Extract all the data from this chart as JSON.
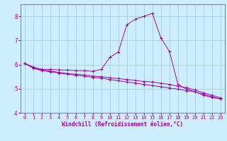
{
  "xlabel": "Windchill (Refroidissement éolien,°C)",
  "background_color": "#cceeff",
  "line_color": "#aa00aa",
  "grid_color": "#99cccc",
  "hours": [
    0,
    1,
    2,
    3,
    4,
    5,
    6,
    7,
    8,
    9,
    10,
    11,
    12,
    13,
    14,
    15,
    16,
    17,
    18,
    19,
    20,
    21,
    22,
    23
  ],
  "curve1": [
    6.05,
    5.9,
    5.8,
    5.8,
    5.78,
    5.77,
    5.75,
    5.75,
    5.72,
    5.8,
    6.3,
    6.52,
    7.65,
    7.88,
    8.0,
    8.12,
    7.1,
    6.55,
    5.18,
    4.98,
    4.88,
    4.73,
    4.63,
    4.58
  ],
  "curve2": [
    6.05,
    5.87,
    5.77,
    5.73,
    5.68,
    5.63,
    5.6,
    5.57,
    5.52,
    5.5,
    5.45,
    5.42,
    5.38,
    5.34,
    5.3,
    5.28,
    5.22,
    5.18,
    5.1,
    5.04,
    4.95,
    4.83,
    4.73,
    4.62
  ],
  "curve3": [
    6.05,
    5.85,
    5.75,
    5.7,
    5.65,
    5.6,
    5.56,
    5.52,
    5.47,
    5.44,
    5.38,
    5.33,
    5.28,
    5.23,
    5.18,
    5.13,
    5.08,
    5.03,
    4.98,
    4.92,
    4.87,
    4.77,
    4.67,
    4.57
  ],
  "ylim": [
    4.0,
    8.5
  ],
  "xlim_min": -0.5,
  "xlim_max": 23.5,
  "yticks": [
    4,
    5,
    6,
    7,
    8
  ],
  "xticks": [
    0,
    1,
    2,
    3,
    4,
    5,
    6,
    7,
    8,
    9,
    10,
    11,
    12,
    13,
    14,
    15,
    16,
    17,
    18,
    19,
    20,
    21,
    22,
    23
  ],
  "tick_fontsize": 5,
  "xlabel_fontsize": 5.5
}
